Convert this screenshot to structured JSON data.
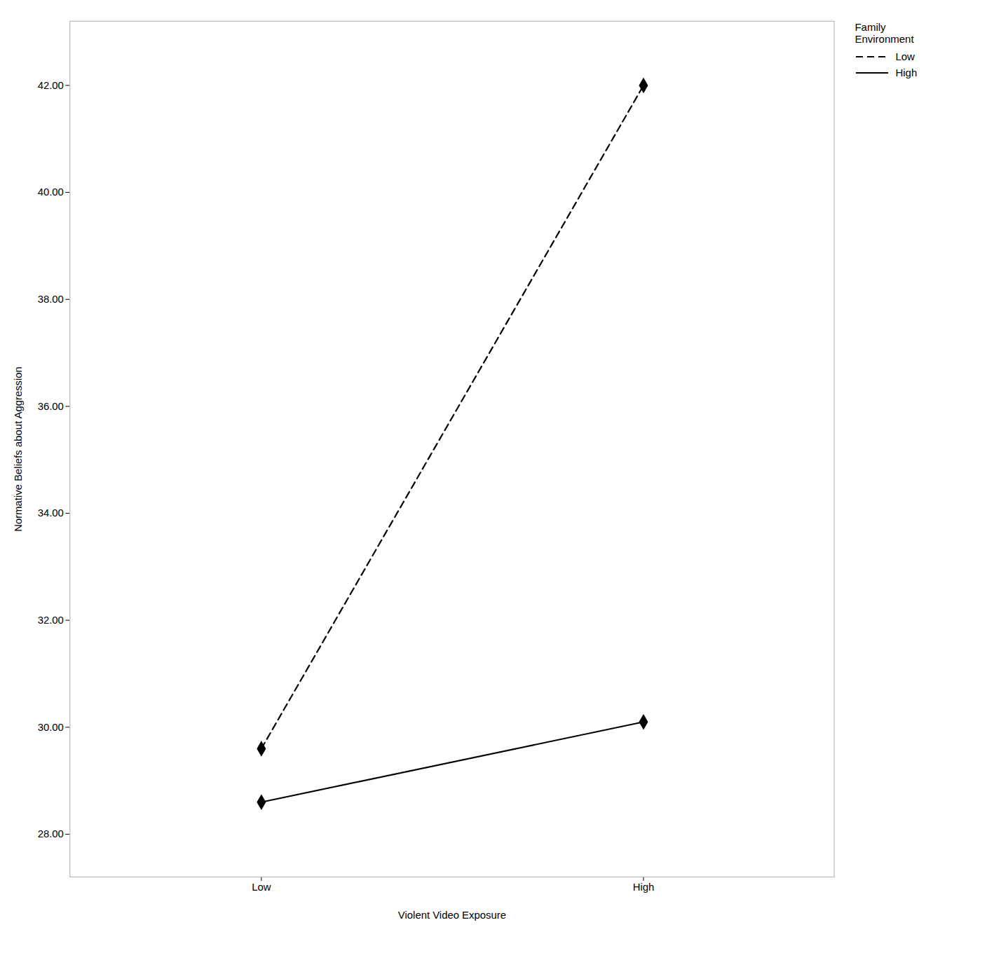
{
  "chart_data": {
    "type": "line",
    "xlabel": "Violent Video Exposure",
    "ylabel": "Normative Beliefs about Aggression",
    "categories": [
      "Low",
      "High"
    ],
    "series": [
      {
        "name": "Low",
        "color": "#000000",
        "line_style": "dashed",
        "marker": "diamond",
        "values": [
          29.6,
          42.0
        ]
      },
      {
        "name": "High",
        "color": "#000000",
        "line_style": "solid",
        "marker": "diamond",
        "values": [
          28.6,
          30.1
        ]
      }
    ],
    "ylim": [
      27.2,
      43.2
    ],
    "yticks": [
      {
        "value": 28,
        "label": "28.00"
      },
      {
        "value": 30,
        "label": "30.00"
      },
      {
        "value": 32,
        "label": "32.00"
      },
      {
        "value": 34,
        "label": "34.00"
      },
      {
        "value": 36,
        "label": "36.00"
      },
      {
        "value": 38,
        "label": "38.00"
      },
      {
        "value": 40,
        "label": "40.00"
      },
      {
        "value": 42,
        "label": "42.00"
      }
    ],
    "grid": false,
    "legend": "top-right",
    "legend_title": "Family\nEnvironment"
  }
}
